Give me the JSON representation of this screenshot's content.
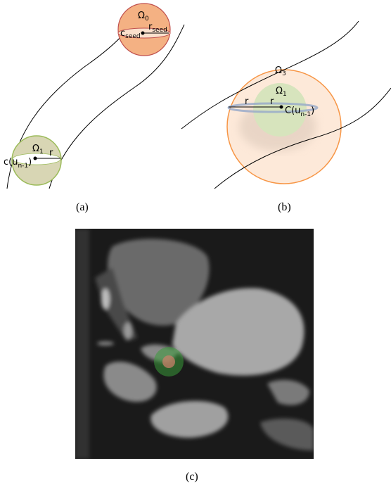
{
  "panel_a": {
    "omega0": {
      "base": "Ω",
      "sub": "0"
    },
    "c_seed": {
      "base": "c",
      "sub": "seed"
    },
    "r_seed": {
      "base": "r",
      "sub": "seed"
    },
    "omega1": {
      "base": "Ω",
      "sub": "1"
    },
    "c_u": {
      "base": "c(u",
      "sub": "n-1",
      "tail": ")"
    },
    "r": "r",
    "caption": "(a)"
  },
  "panel_b": {
    "omega3": {
      "base": "Ω",
      "sub": "3"
    },
    "omega1": {
      "base": "Ω",
      "sub": "1"
    },
    "r_outer": "r",
    "r_inner": "r",
    "c_u": {
      "base": "C(u",
      "sub": "n-1",
      "tail": ")"
    },
    "caption": "(b)"
  },
  "panel_c": {
    "caption": "(c)"
  }
}
